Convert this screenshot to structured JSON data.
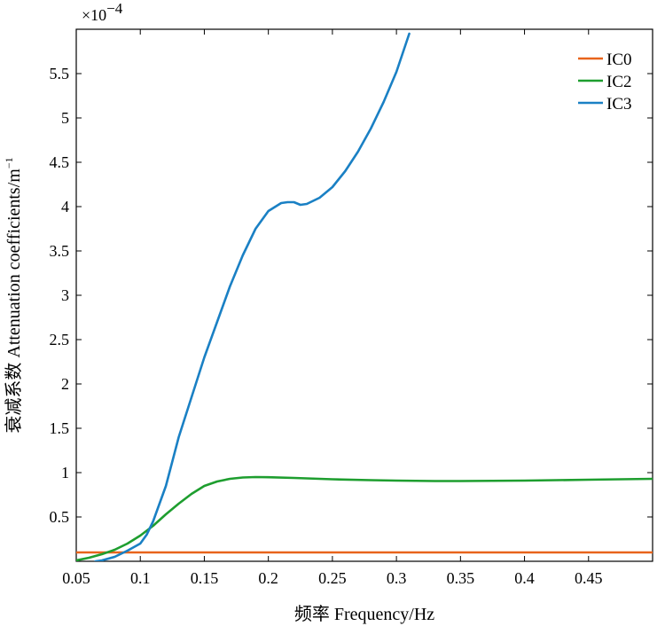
{
  "chart_data": {
    "type": "line",
    "xlabel": "频率 Frequency/Hz",
    "ylabel": "衰减系数 Attenuation coefficients/m",
    "ylabel_superscript": "−1",
    "y_multiplier_base": "×10",
    "y_multiplier_exponent": "−4",
    "xlim": [
      0.05,
      0.5
    ],
    "ylim": [
      0,
      6.0
    ],
    "x_ticks": [
      0.05,
      0.1,
      0.15,
      0.2,
      0.25,
      0.3,
      0.35,
      0.4,
      0.45
    ],
    "x_tick_labels": [
      "0.05",
      "0.1",
      "0.15",
      "0.2",
      "0.25",
      "0.3",
      "0.35",
      "0.4",
      "0.45"
    ],
    "y_ticks": [
      0.5,
      1,
      1.5,
      2,
      2.5,
      3,
      3.5,
      4,
      4.5,
      5,
      5.5
    ],
    "y_tick_labels": [
      "0.5",
      "1",
      "1.5",
      "2",
      "2.5",
      "3",
      "3.5",
      "4",
      "4.5",
      "5",
      "5.5"
    ],
    "grid": false,
    "legend_position": "top-right",
    "series": [
      {
        "name": "IC0",
        "color": "#E8641B",
        "x": [
          0.05,
          0.5
        ],
        "y": [
          0.1,
          0.1
        ]
      },
      {
        "name": "IC2",
        "color": "#1E9E2F",
        "x": [
          0.05,
          0.06,
          0.07,
          0.08,
          0.09,
          0.1,
          0.11,
          0.12,
          0.13,
          0.14,
          0.15,
          0.16,
          0.17,
          0.18,
          0.19,
          0.2,
          0.22,
          0.25,
          0.28,
          0.3,
          0.33,
          0.35,
          0.4,
          0.45,
          0.5
        ],
        "y": [
          0.01,
          0.04,
          0.08,
          0.13,
          0.2,
          0.29,
          0.4,
          0.53,
          0.65,
          0.76,
          0.85,
          0.9,
          0.93,
          0.945,
          0.95,
          0.948,
          0.94,
          0.925,
          0.915,
          0.91,
          0.905,
          0.905,
          0.91,
          0.92,
          0.93
        ]
      },
      {
        "name": "IC3",
        "color": "#1A80C4",
        "x": [
          0.065,
          0.07,
          0.08,
          0.09,
          0.1,
          0.105,
          0.11,
          0.12,
          0.13,
          0.14,
          0.15,
          0.16,
          0.17,
          0.18,
          0.19,
          0.2,
          0.21,
          0.215,
          0.22,
          0.225,
          0.23,
          0.24,
          0.25,
          0.26,
          0.27,
          0.28,
          0.29,
          0.3,
          0.31
        ],
        "y": [
          0.0,
          0.01,
          0.05,
          0.12,
          0.2,
          0.3,
          0.45,
          0.85,
          1.4,
          1.85,
          2.3,
          2.7,
          3.1,
          3.45,
          3.75,
          3.95,
          4.04,
          4.05,
          4.05,
          4.02,
          4.03,
          4.1,
          4.22,
          4.4,
          4.62,
          4.88,
          5.18,
          5.52,
          5.95
        ]
      }
    ]
  }
}
